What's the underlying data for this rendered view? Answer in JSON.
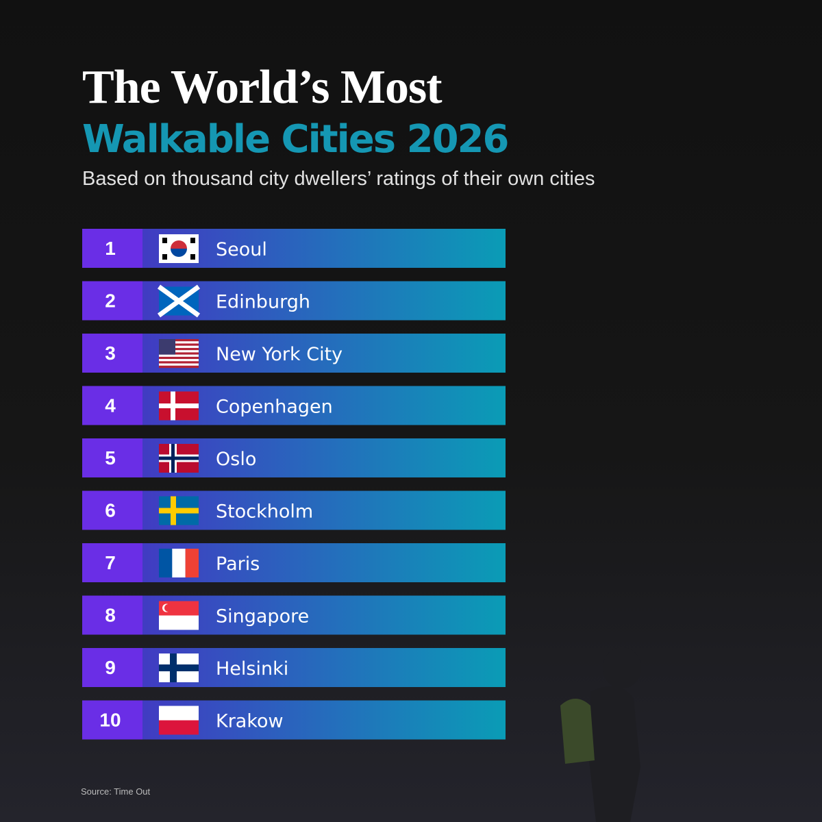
{
  "header": {
    "title_line1": "The World’s Most",
    "title_line2": "Walkable Cities 2026",
    "subtitle": "Based on thousand city dwellers’ ratings of their own cities"
  },
  "ranking": [
    {
      "rank": "1",
      "city": "Seoul"
    },
    {
      "rank": "2",
      "city": "Edinburgh"
    },
    {
      "rank": "3",
      "city": "New York City"
    },
    {
      "rank": "4",
      "city": "Copenhagen"
    },
    {
      "rank": "5",
      "city": "Oslo"
    },
    {
      "rank": "6",
      "city": "Stockholm"
    },
    {
      "rank": "7",
      "city": "Paris"
    },
    {
      "rank": "8",
      "city": "Singapore"
    },
    {
      "rank": "9",
      "city": "Helsinki"
    },
    {
      "rank": "10",
      "city": "Krakow"
    }
  ],
  "source": "Source: Time Out"
}
